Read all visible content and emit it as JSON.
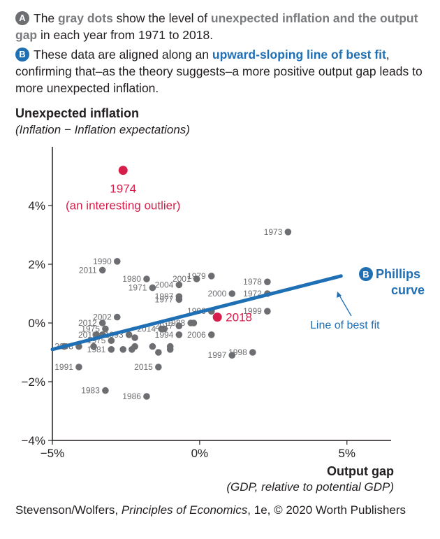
{
  "notes": {
    "a": {
      "badge": "A",
      "t1": "The ",
      "h1": "gray dots",
      "t2": " show the level of ",
      "h2": "unexpected inflation and the output gap",
      "t3": " in each year from 1971 to 2018."
    },
    "b": {
      "badge": "B",
      "t1": "These data are aligned along an ",
      "h1": "upward-sloping line of best fit",
      "t2": ", confirming that–as the theory suggests–a more positive output gap leads to more unexpected inflation."
    }
  },
  "credit": {
    "pre": "Stevenson/Wolfers, ",
    "book": "Principles of Economics",
    "post": ", 1e, © 2020 Worth Publishers"
  },
  "colors": {
    "dot": "#6d6e71",
    "highlight": "#d71e4a",
    "line": "#1f6fb5",
    "axis": "#231f20"
  },
  "chart_data": {
    "type": "scatter",
    "ylabel": "Unexpected inflation",
    "ysub": "(Inflation − Inflation expectations)",
    "xlabel": "Output gap",
    "xsub": "(GDP, relative to potential GDP)",
    "xlim": [
      -5,
      6.5
    ],
    "ylim": [
      -4,
      6
    ],
    "xticks": [
      {
        "v": -5,
        "label": "−5%"
      },
      {
        "v": 0,
        "label": "0%"
      },
      {
        "v": 5,
        "label": "5%"
      }
    ],
    "yticks": [
      {
        "v": 4,
        "label": "4%"
      },
      {
        "v": 2,
        "label": "2%"
      },
      {
        "v": 0,
        "label": "0%"
      },
      {
        "v": -2,
        "label": "−2%"
      },
      {
        "v": -4,
        "label": "−4%"
      }
    ],
    "labeled_points": [
      {
        "label": "1990",
        "x": -2.8,
        "y": 2.1
      },
      {
        "label": "2011",
        "x": -3.3,
        "y": 1.8
      },
      {
        "label": "1980",
        "x": -1.8,
        "y": 1.5
      },
      {
        "label": "2004",
        "x": -0.7,
        "y": 1.3
      },
      {
        "label": "1971",
        "x": -1.6,
        "y": 1.2
      },
      {
        "label": "2001",
        "x": -0.1,
        "y": 1.5
      },
      {
        "label": "1979",
        "x": 0.4,
        "y": 1.6
      },
      {
        "label": "1987",
        "x": -0.7,
        "y": 0.9
      },
      {
        "label": "1977",
        "x": -0.7,
        "y": 0.8
      },
      {
        "label": "2000",
        "x": 1.1,
        "y": 1.0
      },
      {
        "label": "1978",
        "x": 2.3,
        "y": 1.4
      },
      {
        "label": "1973",
        "x": 3.0,
        "y": 3.1
      },
      {
        "label": "1972",
        "x": 2.3,
        "y": 1.0
      },
      {
        "label": "1999",
        "x": 2.3,
        "y": 0.4
      },
      {
        "label": "1996",
        "x": 0.4,
        "y": 0.4
      },
      {
        "label": "2002",
        "x": -2.8,
        "y": 0.2
      },
      {
        "label": "2012",
        "x": -3.3,
        "y": 0.0
      },
      {
        "label": "1975",
        "x": -3.2,
        "y": -0.2
      },
      {
        "label": "2010",
        "x": -3.3,
        "y": -0.4
      },
      {
        "label": "1993",
        "x": -2.4,
        "y": -0.4
      },
      {
        "label": "2014",
        "x": -1.3,
        "y": -0.2
      },
      {
        "label": "2017",
        "x": -0.7,
        "y": -0.1
      },
      {
        "label": "1988",
        "x": -0.3,
        "y": 0.0
      },
      {
        "label": "1994",
        "x": -0.7,
        "y": -0.4
      },
      {
        "label": "2006",
        "x": 0.4,
        "y": -0.4
      },
      {
        "label": "1975",
        "x": -3.0,
        "y": -0.6
      },
      {
        "label": "2008",
        "x": -4.1,
        "y": -0.8
      },
      {
        "label": "1981",
        "x": -3.0,
        "y": -0.9
      },
      {
        "label": "1997",
        "x": 1.1,
        "y": -1.1
      },
      {
        "label": "1998",
        "x": 1.8,
        "y": -1.0
      },
      {
        "label": "1991",
        "x": -4.1,
        "y": -1.5
      },
      {
        "label": "2015",
        "x": -1.4,
        "y": -1.5
      },
      {
        "label": "1983",
        "x": -3.2,
        "y": -2.3
      },
      {
        "label": "1986",
        "x": -1.8,
        "y": -2.5
      }
    ],
    "other_points": [
      {
        "x": -4.6,
        "y": -0.8
      },
      {
        "x": -3.6,
        "y": -0.8
      },
      {
        "x": -3.5,
        "y": -0.4
      },
      {
        "x": -2.6,
        "y": -0.9
      },
      {
        "x": -2.3,
        "y": -0.9
      },
      {
        "x": -2.2,
        "y": -0.5
      },
      {
        "x": -2.2,
        "y": -0.8
      },
      {
        "x": -1.6,
        "y": -0.8
      },
      {
        "x": -1.4,
        "y": -1.0
      },
      {
        "x": -1.2,
        "y": -0.2
      },
      {
        "x": -1.0,
        "y": -0.9
      },
      {
        "x": -1.0,
        "y": -0.8
      },
      {
        "x": -0.2,
        "y": 0.0
      },
      {
        "x": 0.4,
        "y": 0.4
      }
    ],
    "highlights": [
      {
        "label": "1974",
        "note": "(an interesting outlier)",
        "x": -2.6,
        "y": 5.2
      },
      {
        "label": "2018",
        "note": "",
        "x": 0.6,
        "y": 0.2
      }
    ],
    "fit_line": {
      "x": [
        -5,
        4.8
      ],
      "y": [
        -0.9,
        1.6
      ]
    },
    "line_badge": "B",
    "line_label": [
      "Phillips",
      "curve"
    ],
    "annotation": "Line of best fit"
  }
}
